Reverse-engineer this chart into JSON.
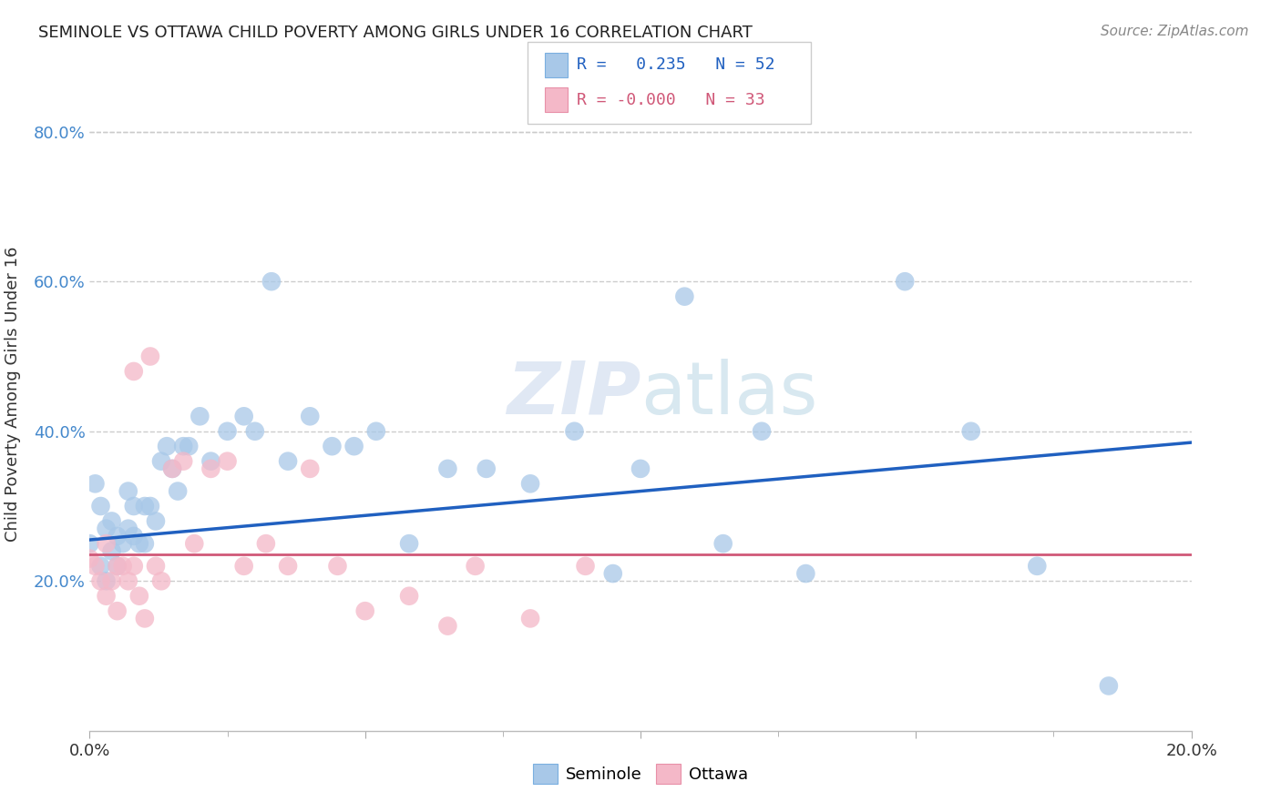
{
  "title": "SEMINOLE VS OTTAWA CHILD POVERTY AMONG GIRLS UNDER 16 CORRELATION CHART",
  "source": "Source: ZipAtlas.com",
  "ylabel": "Child Poverty Among Girls Under 16",
  "xlim": [
    0.0,
    0.2
  ],
  "ylim": [
    0.0,
    0.9
  ],
  "seminole_color": "#a8c8e8",
  "ottawa_color": "#f4b8c8",
  "seminole_line_color": "#2060c0",
  "ottawa_line_color": "#d05878",
  "watermark": "ZIPatlas",
  "seminole_x": [
    0.0,
    0.001,
    0.002,
    0.002,
    0.003,
    0.003,
    0.004,
    0.004,
    0.005,
    0.005,
    0.006,
    0.007,
    0.007,
    0.008,
    0.008,
    0.009,
    0.01,
    0.01,
    0.011,
    0.012,
    0.013,
    0.014,
    0.015,
    0.016,
    0.017,
    0.018,
    0.02,
    0.022,
    0.025,
    0.028,
    0.03,
    0.033,
    0.036,
    0.04,
    0.044,
    0.048,
    0.052,
    0.058,
    0.065,
    0.072,
    0.08,
    0.088,
    0.095,
    0.1,
    0.108,
    0.115,
    0.122,
    0.13,
    0.148,
    0.16,
    0.172,
    0.185
  ],
  "seminole_y": [
    0.25,
    0.33,
    0.3,
    0.22,
    0.27,
    0.2,
    0.28,
    0.24,
    0.26,
    0.22,
    0.25,
    0.32,
    0.27,
    0.3,
    0.26,
    0.25,
    0.3,
    0.25,
    0.3,
    0.28,
    0.36,
    0.38,
    0.35,
    0.32,
    0.38,
    0.38,
    0.42,
    0.36,
    0.4,
    0.42,
    0.4,
    0.6,
    0.36,
    0.42,
    0.38,
    0.38,
    0.4,
    0.25,
    0.35,
    0.35,
    0.33,
    0.4,
    0.21,
    0.35,
    0.58,
    0.25,
    0.4,
    0.21,
    0.6,
    0.4,
    0.22,
    0.06
  ],
  "ottawa_x": [
    0.0,
    0.001,
    0.002,
    0.003,
    0.003,
    0.004,
    0.005,
    0.005,
    0.006,
    0.007,
    0.008,
    0.008,
    0.009,
    0.01,
    0.011,
    0.012,
    0.013,
    0.015,
    0.017,
    0.019,
    0.022,
    0.025,
    0.028,
    0.032,
    0.036,
    0.04,
    0.045,
    0.05,
    0.058,
    0.065,
    0.07,
    0.08,
    0.09
  ],
  "ottawa_y": [
    0.23,
    0.22,
    0.2,
    0.18,
    0.25,
    0.2,
    0.22,
    0.16,
    0.22,
    0.2,
    0.48,
    0.22,
    0.18,
    0.15,
    0.5,
    0.22,
    0.2,
    0.35,
    0.36,
    0.25,
    0.35,
    0.36,
    0.22,
    0.25,
    0.22,
    0.35,
    0.22,
    0.16,
    0.18,
    0.14,
    0.22,
    0.15,
    0.22
  ],
  "seminole_R": 0.235,
  "ottawa_R": -0.0,
  "seminole_N": 52,
  "ottawa_N": 33
}
